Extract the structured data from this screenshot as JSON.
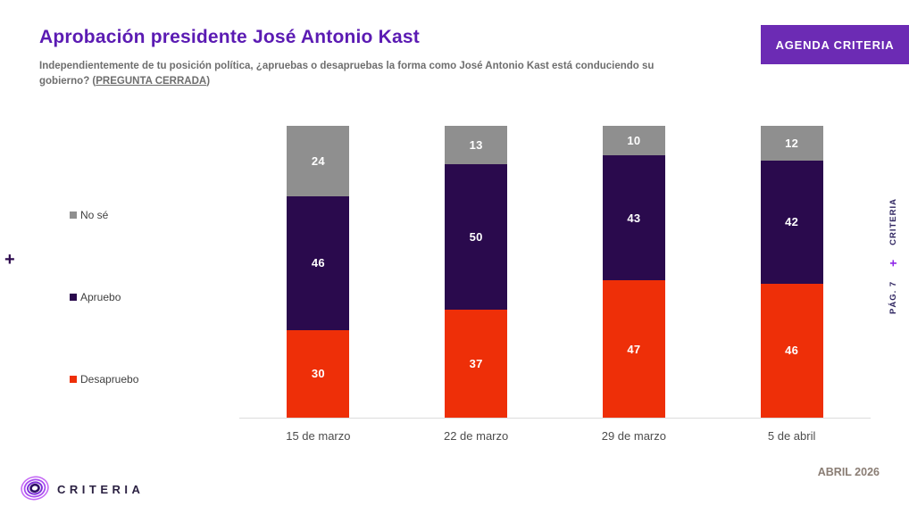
{
  "header": {
    "title": "Aprobación presidente José Antonio Kast",
    "subtitle_prefix": "Independientemente de tu posición política, ¿apruebas o desapruebas la forma como José Antonio Kast está conduciendo su gobierno? (",
    "subtitle_emphasis": "PREGUNTA CERRADA",
    "subtitle_suffix": ")",
    "agenda_button_label": "AGENDA CRITERIA"
  },
  "chart_data": {
    "type": "bar",
    "stacked": true,
    "title": "Aprobación presidente José Antonio Kast",
    "categories": [
      "15 de marzo",
      "22 de marzo",
      "29 de marzo",
      "5 de abril"
    ],
    "series": [
      {
        "name": "Desapruebo",
        "color": "#ee2f08",
        "values": [
          30,
          37,
          47,
          46
        ]
      },
      {
        "name": "Apruebo",
        "color": "#2a0a4d",
        "values": [
          46,
          50,
          43,
          42
        ]
      },
      {
        "name": "No sé",
        "color": "#8f8f8f",
        "values": [
          24,
          13,
          10,
          12
        ]
      }
    ],
    "ylim": [
      0,
      100
    ],
    "grid": false,
    "legend_position": "left",
    "value_labels": "inside-white"
  },
  "side_rail": {
    "left_plus": "+",
    "right_plus": "+",
    "right_brand": "CRITERIA",
    "right_page": "PÁG. 7"
  },
  "footer": {
    "brand": "CRITERIA",
    "date": "ABRIL 2026"
  },
  "colors": {
    "title": "#5b1bb3",
    "accent_button": "#6c2bb4",
    "axis_line": "#dcdcdc"
  }
}
